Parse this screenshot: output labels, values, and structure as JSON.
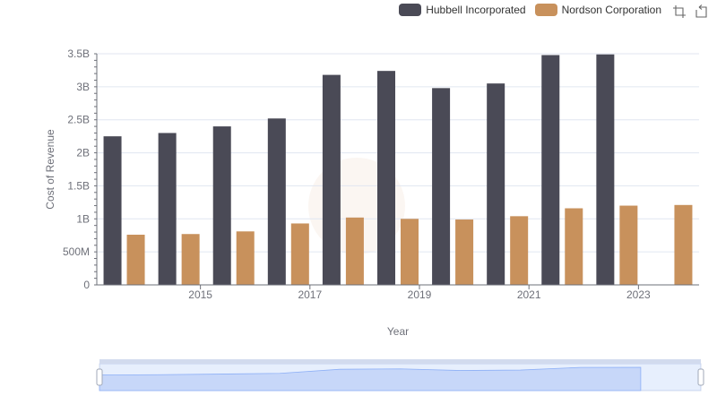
{
  "toolbox": {
    "zoom_icon": "zoom-icon",
    "restore_icon": "restore-icon"
  },
  "chart_data": {
    "type": "bar",
    "title": "",
    "xlabel": "Year",
    "ylabel": "Cost of Revenue",
    "categories": [
      "2014",
      "2015",
      "2016",
      "2017",
      "2018",
      "2019",
      "2020",
      "2021",
      "2022",
      "2023",
      "2024"
    ],
    "x_tick_labels": [
      "2015",
      "2017",
      "2019",
      "2021",
      "2023"
    ],
    "y_tick_labels": [
      "0",
      "500M",
      "1B",
      "1.5B",
      "2B",
      "2.5B",
      "3B",
      "3.5B"
    ],
    "ylim": [
      0,
      3500000000
    ],
    "series": [
      {
        "name": "Hubbell Incorporated",
        "color": "#4a4a56",
        "values": [
          2250000000,
          2300000000,
          2400000000,
          2520000000,
          3180000000,
          3240000000,
          2980000000,
          3050000000,
          3480000000,
          3490000000,
          null
        ]
      },
      {
        "name": "Nordson Corporation",
        "color": "#c8915c",
        "values": [
          760000000,
          770000000,
          810000000,
          930000000,
          1020000000,
          1000000000,
          990000000,
          1040000000,
          1160000000,
          1200000000,
          1210000000
        ]
      }
    ],
    "legend_position": "top-right",
    "grid": true
  }
}
